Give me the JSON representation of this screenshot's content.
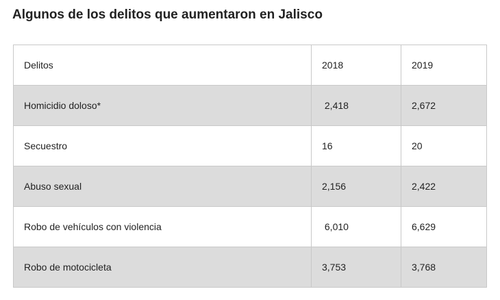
{
  "title": "Algunos de los delitos que aumentaron en Jalisco",
  "table": {
    "headers": [
      "Delitos",
      "2018",
      "2019"
    ],
    "rows": [
      {
        "delito": "Homicidio doloso*",
        "y2018": " 2,418",
        "y2019": "2,672"
      },
      {
        "delito": "Secuestro",
        "y2018": "16",
        "y2019": "20"
      },
      {
        "delito": "Abuso sexual",
        "y2018": "2,156",
        "y2019": "2,422"
      },
      {
        "delito": "Robo de vehículos con violencia",
        "y2018": " 6,010",
        "y2019": "6,629"
      },
      {
        "delito": "Robo de motocicleta",
        "y2018": "3,753",
        "y2019": "3,768"
      }
    ]
  }
}
